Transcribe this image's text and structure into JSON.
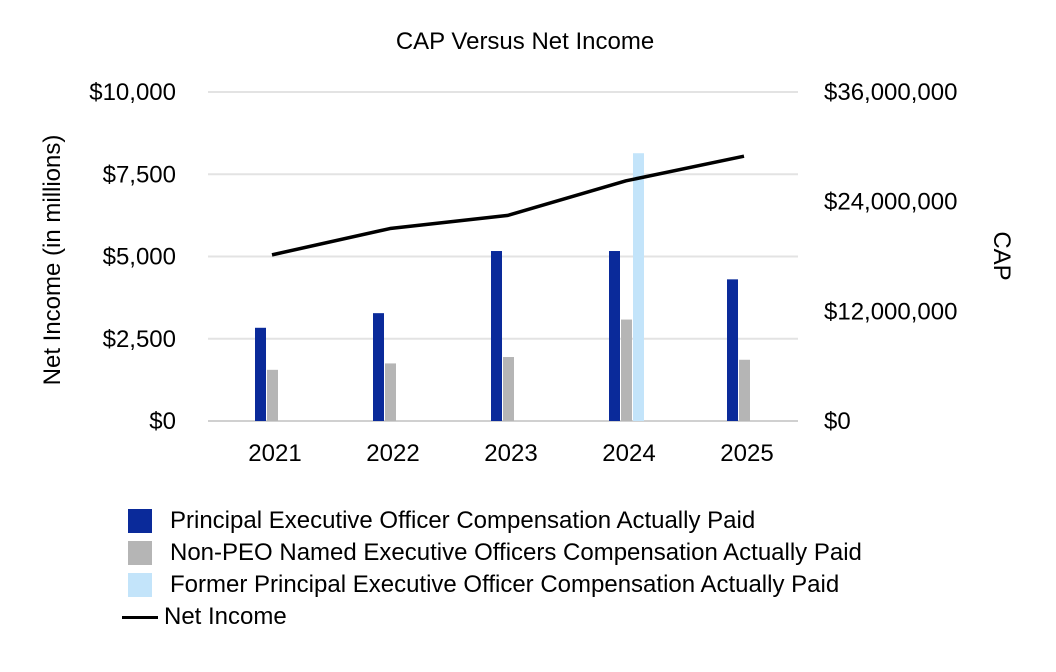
{
  "chart_data": {
    "type": "bar",
    "title": "CAP Versus Net Income",
    "categories": [
      "2021",
      "2022",
      "2023",
      "2024",
      "2025"
    ],
    "ylabel_left": "Net Income (in millions)",
    "ylabel_right": "CAP",
    "left_axis": {
      "min": 0,
      "max": 10000,
      "ticks": [
        0,
        2500,
        5000,
        7500,
        10000
      ],
      "tick_labels": [
        "$0",
        "$2,500",
        "$5,000",
        "$7,500",
        "$10,000"
      ]
    },
    "right_axis": {
      "min": 0,
      "max": 36000000,
      "ticks": [
        0,
        12000000,
        24000000,
        36000000
      ],
      "tick_labels": [
        "$0",
        "$12,000,000",
        "$24,000,000",
        "$36,000,000"
      ]
    },
    "grid": true,
    "legend_position": "bottom",
    "series": [
      {
        "name": "Principal Executive Officer Compensation Actually Paid",
        "type": "bar",
        "axis": "right",
        "color": "#0a2a9a",
        "values": [
          10200000,
          11800000,
          18600000,
          18600000,
          15500000
        ]
      },
      {
        "name": "Non-PEO Named Executive Officers Compensation Actually Paid",
        "type": "bar",
        "axis": "right",
        "color": "#b5b5b5",
        "values": [
          5600000,
          6300000,
          7000000,
          11100000,
          6700000
        ]
      },
      {
        "name": "Former Principal Executive Officer Compensation Actually Paid",
        "type": "bar",
        "axis": "right",
        "color": "#c3e4fa",
        "values": [
          null,
          null,
          null,
          29300000,
          null
        ]
      },
      {
        "name": "Net Income",
        "type": "line",
        "axis": "left",
        "color": "#000000",
        "values": [
          5050,
          5850,
          6250,
          7300,
          8050
        ]
      }
    ]
  }
}
